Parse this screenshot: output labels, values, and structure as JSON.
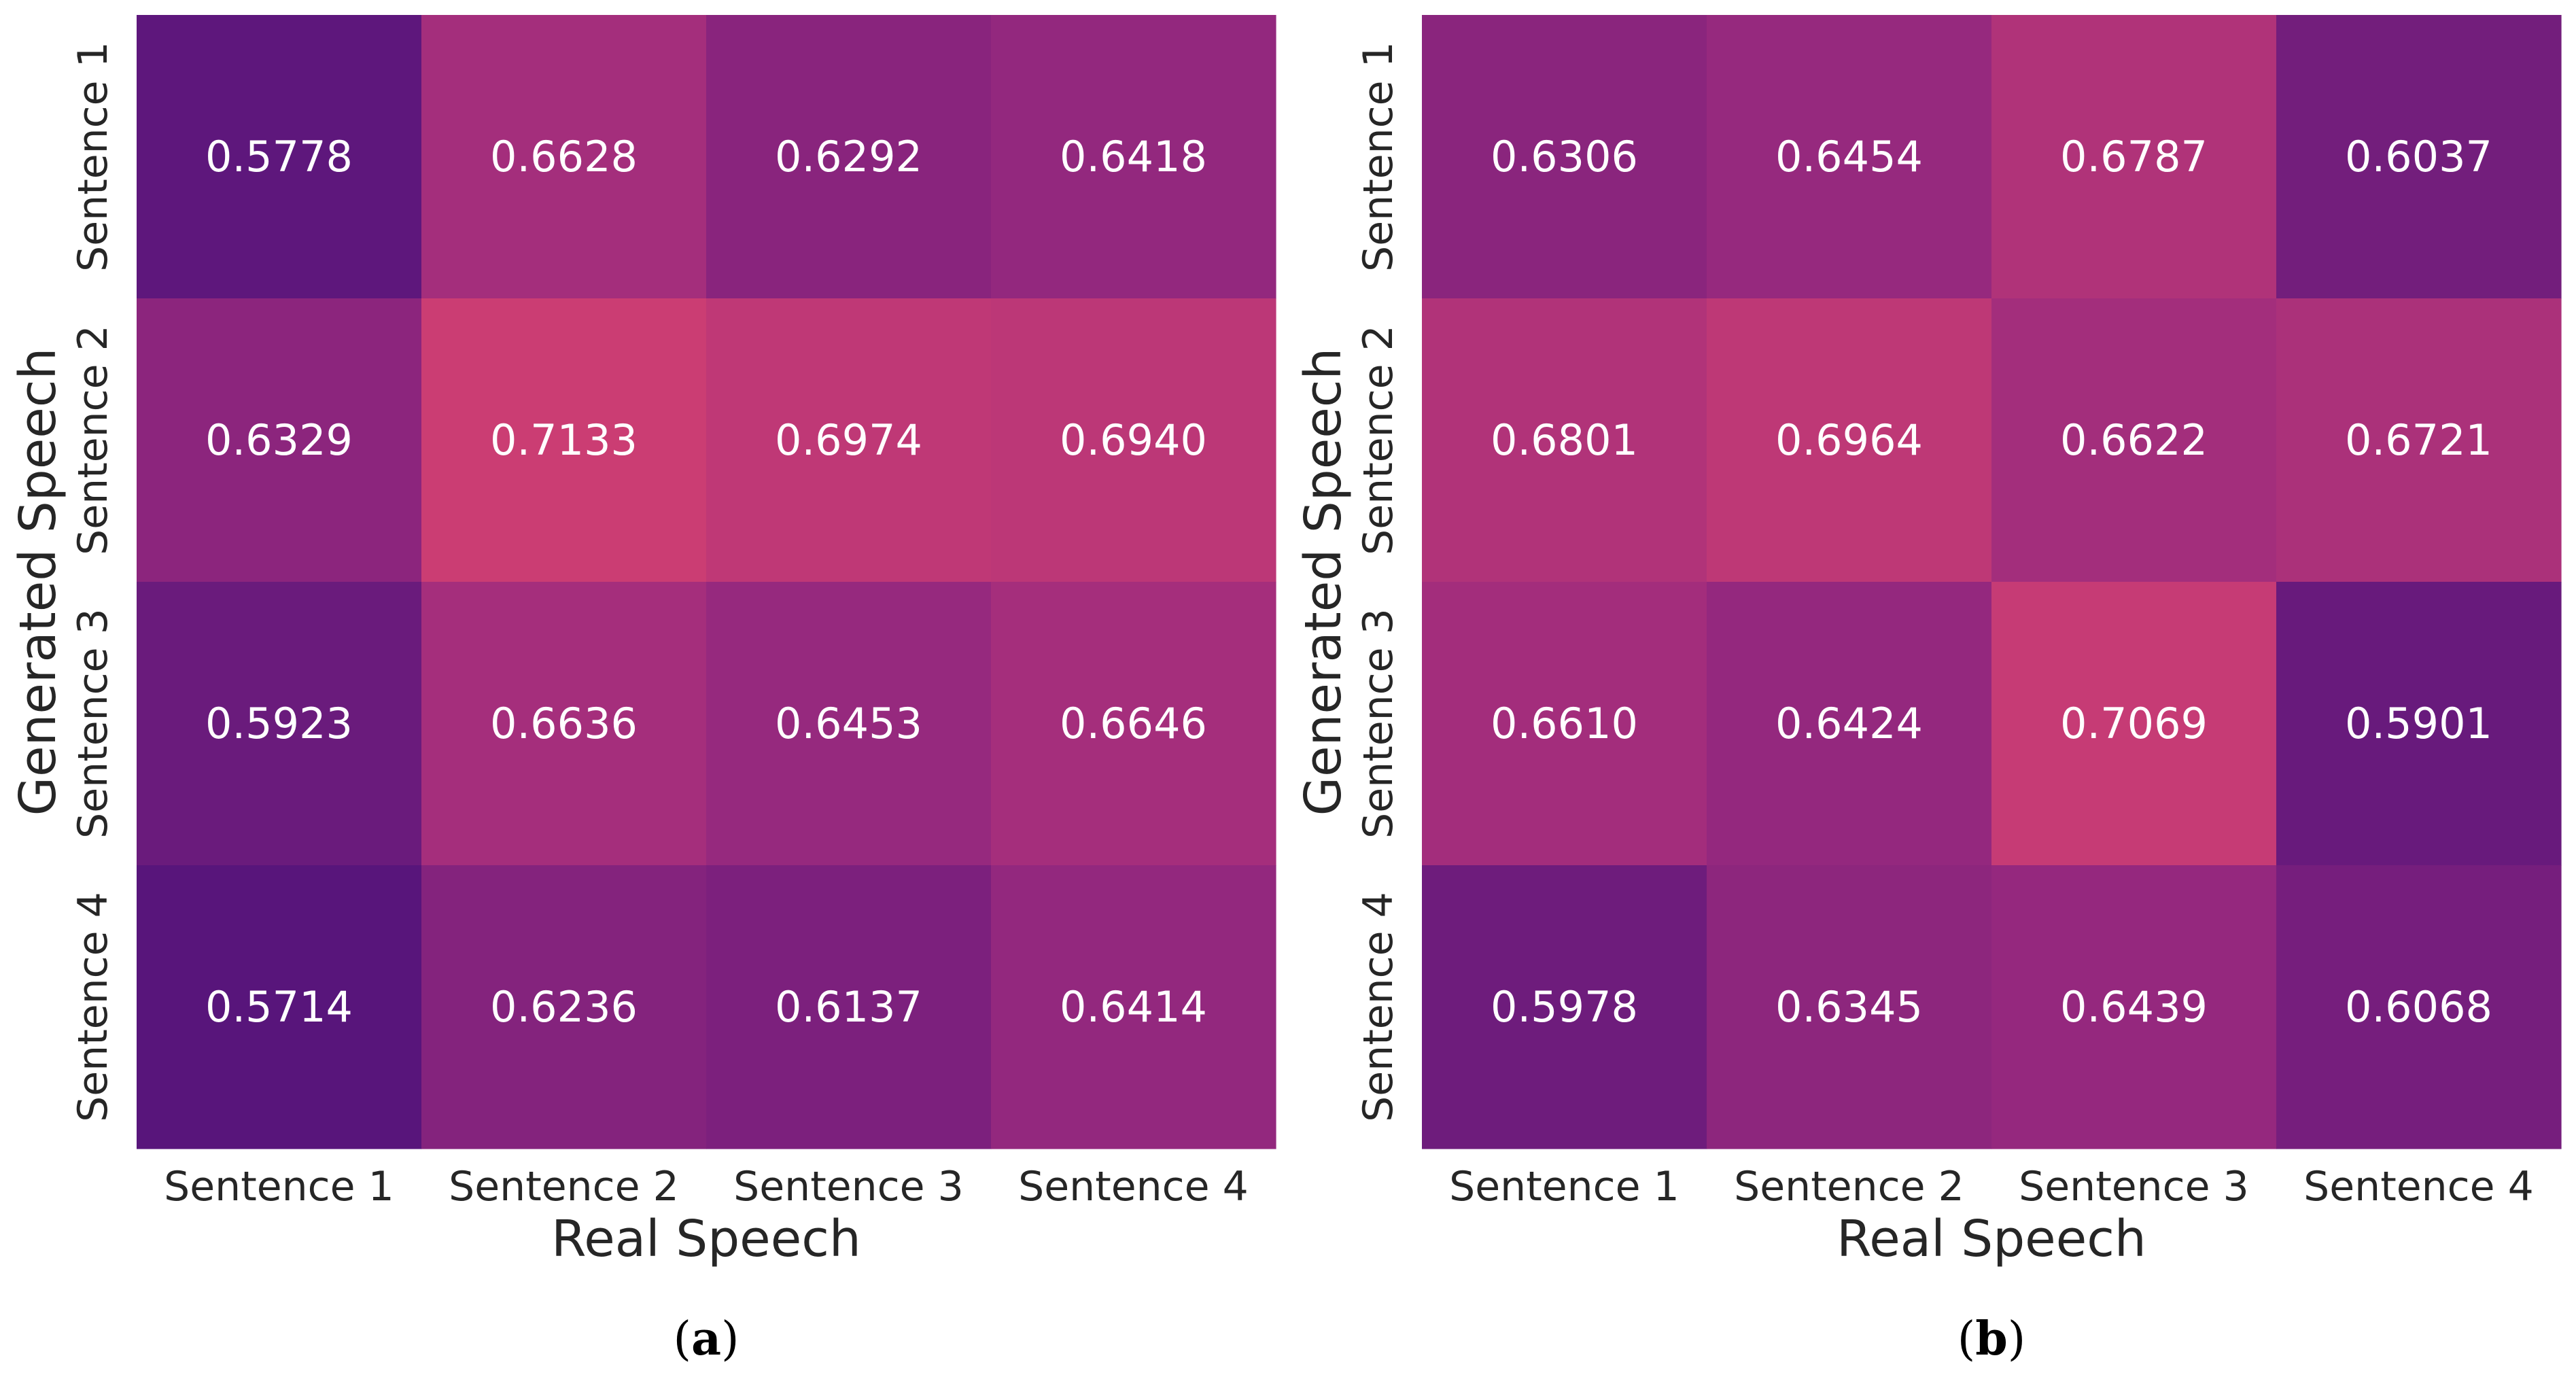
{
  "chart_data": [
    {
      "type": "heatmap",
      "panel_label": "a",
      "caption_open": "(",
      "caption_close": ")",
      "xlabel": "Real Speech",
      "ylabel": "Generated Speech",
      "x_categories": [
        "Sentence 1",
        "Sentence 2",
        "Sentence 3",
        "Sentence 4"
      ],
      "y_categories": [
        "Sentence 1",
        "Sentence 2",
        "Sentence 3",
        "Sentence 4"
      ],
      "values": [
        [
          "0.5778",
          "0.6628",
          "0.6292",
          "0.6418"
        ],
        [
          "0.6329",
          "0.7133",
          "0.6974",
          "0.6940"
        ],
        [
          "0.5923",
          "0.6636",
          "0.6453",
          "0.6646"
        ],
        [
          "0.5714",
          "0.6236",
          "0.6137",
          "0.6414"
        ]
      ],
      "color_range": [
        0.56,
        0.74
      ],
      "colormap": "flare_r"
    },
    {
      "type": "heatmap",
      "panel_label": "b",
      "caption_open": "(",
      "caption_close": ")",
      "xlabel": "Real Speech",
      "ylabel": "Generated Speech",
      "x_categories": [
        "Sentence 1",
        "Sentence 2",
        "Sentence 3",
        "Sentence 4"
      ],
      "y_categories": [
        "Sentence 1",
        "Sentence 2",
        "Sentence 3",
        "Sentence 4"
      ],
      "values": [
        [
          "0.6306",
          "0.6454",
          "0.6787",
          "0.6037"
        ],
        [
          "0.6801",
          "0.6964",
          "0.6622",
          "0.6721"
        ],
        [
          "0.6610",
          "0.6424",
          "0.7069",
          "0.5901"
        ],
        [
          "0.5978",
          "0.6345",
          "0.6439",
          "0.6068"
        ]
      ],
      "color_range": [
        0.56,
        0.74
      ],
      "colormap": "flare_r"
    }
  ],
  "colors": {
    "low": "#4f127b",
    "mid": "#9a2a7e",
    "high": "#e0456f",
    "cell_text": "#ffffff",
    "tick_text": "#262626",
    "caption_text": "#000000"
  }
}
